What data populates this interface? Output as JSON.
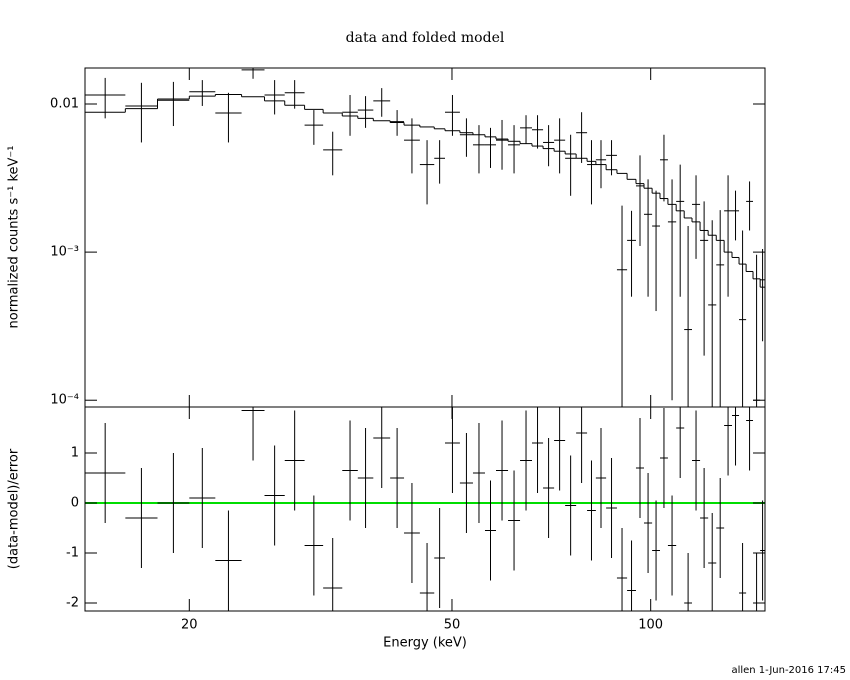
{
  "chart_data": [
    {
      "type": "errorbar",
      "title": "data and folded model",
      "ylabel": "normalized counts s⁻¹ keV⁻¹",
      "xscale": "log",
      "yscale": "log",
      "xlim": [
        13.9,
        149
      ],
      "ylim": [
        9e-05,
        0.0175
      ],
      "yticks": [
        {
          "value": 0.01,
          "label": "0.01"
        },
        {
          "value": 0.001,
          "label": "10⁻³"
        },
        {
          "value": 0.0001,
          "label": "10⁻⁴"
        }
      ],
      "bins": [
        13.9,
        16.0,
        17.9,
        20.0,
        21.9,
        24.0,
        26.0,
        27.9,
        29.9,
        31.9,
        34.1,
        36.0,
        38.0,
        40.3,
        42.3,
        44.7,
        47.0,
        48.8,
        51.4,
        53.8,
        56.1,
        58.3,
        60.8,
        63.4,
        66.1,
        68.7,
        71.4,
        74.2,
        77.1,
        80.1,
        82.6,
        85.6,
        88.9,
        92.1,
        95.0,
        97.7,
        100.5,
        103.3,
        106.2,
        109.3,
        112.4,
        115.5,
        118.8,
        122.2,
        125.7,
        129.2,
        132.8,
        136.1,
        139.5,
        142.9,
        146.5,
        149.0
      ],
      "data": {
        "color": "#000000",
        "values": [
          0.0115,
          0.0097,
          0.0106,
          0.0121,
          0.0087,
          0.017,
          0.0115,
          0.0119,
          0.0072,
          0.0049,
          0.0088,
          0.0091,
          0.0105,
          0.0076,
          0.0057,
          0.0039,
          0.0043,
          0.0088,
          0.0062,
          0.0053,
          0.0053,
          0.0057,
          0.0053,
          0.0069,
          0.0067,
          0.0055,
          0.0057,
          0.0043,
          0.0064,
          0.0039,
          0.0042,
          0.0045,
          0.00076,
          0.0012,
          0.0028,
          0.0018,
          0.0015,
          0.0042,
          0.0016,
          0.0022,
          0.0003,
          0.0021,
          0.0012,
          0.00044,
          0.00082,
          0.0019,
          0.0019,
          0.00035,
          0.0022,
          0.0001,
          0.00065
        ],
        "errors": [
          0.0035,
          0.0042,
          0.0035,
          0.0024,
          0.0032,
          0.0022,
          0.003,
          0.0026,
          0.0019,
          0.0016,
          0.0027,
          0.0022,
          0.0023,
          0.0015,
          0.0023,
          0.0018,
          0.0014,
          0.0027,
          0.0018,
          0.0019,
          0.0016,
          0.0021,
          0.0019,
          0.0015,
          0.0017,
          0.0017,
          0.0023,
          0.0019,
          0.0024,
          0.0018,
          0.0015,
          0.0012,
          0.0013,
          0.0007,
          0.0017,
          0.0013,
          0.0011,
          0.002,
          0.0015,
          0.0017,
          0.0012,
          0.0012,
          0.001,
          0.0012,
          0.0011,
          0.0014,
          0.0007,
          0.00105,
          0.0008,
          0.00086,
          0.0004
        ]
      },
      "model": {
        "color": "#000000",
        "values": [
          0.0088,
          0.0093,
          0.0108,
          0.0113,
          0.0116,
          0.0112,
          0.0105,
          0.0098,
          0.0092,
          0.0087,
          0.0083,
          0.008,
          0.0077,
          0.0075,
          0.0072,
          0.007,
          0.0068,
          0.0066,
          0.0064,
          0.0062,
          0.006,
          0.0058,
          0.0056,
          0.0054,
          0.0052,
          0.005,
          0.0048,
          0.0046,
          0.0043,
          0.0041,
          0.0039,
          0.0036,
          0.0034,
          0.0031,
          0.0029,
          0.0027,
          0.0025,
          0.0023,
          0.0021,
          0.0019,
          0.0017,
          0.0016,
          0.0014,
          0.0013,
          0.0012,
          0.001,
          0.00092,
          0.00083,
          0.00074,
          0.00066,
          0.00058
        ]
      }
    },
    {
      "type": "residual",
      "xlabel": "Energy (keV)",
      "ylabel": "(data-model)/error",
      "xscale": "log",
      "xlim": [
        13.9,
        149
      ],
      "ylim": [
        -2.16,
        1.92
      ],
      "xticks": [
        20,
        50,
        100
      ],
      "yticks": [
        -2,
        -1,
        0,
        1
      ],
      "reference_line": {
        "value": 0,
        "color": "#00dd00"
      },
      "data": {
        "color": "#000000",
        "values": [
          0.6,
          -0.3,
          0.0,
          0.1,
          -1.15,
          1.85,
          0.15,
          0.85,
          -0.85,
          -1.7,
          0.65,
          0.5,
          1.3,
          0.5,
          -0.6,
          -1.8,
          -1.1,
          1.2,
          0.4,
          0.6,
          -0.55,
          0.65,
          -0.35,
          0.85,
          1.2,
          0.3,
          1.25,
          -0.05,
          1.4,
          -0.15,
          0.5,
          -0.1,
          -1.5,
          -1.75,
          0.7,
          -0.4,
          -0.95,
          0.9,
          -0.85,
          1.5,
          -2.0,
          0.85,
          -0.3,
          -1.2,
          -0.5,
          1.55,
          1.75,
          -1.8,
          1.65,
          -2.0,
          -0.95
        ],
        "errors": [
          1,
          1,
          1,
          1,
          1,
          1,
          1,
          1,
          1,
          1,
          1,
          1,
          1,
          1,
          1,
          1,
          1,
          1,
          1,
          1,
          1,
          1,
          1,
          1,
          1,
          1,
          1,
          1,
          1,
          1,
          1,
          1,
          1,
          1,
          1,
          1,
          1,
          1,
          1,
          1,
          1,
          1,
          1,
          1,
          1,
          1,
          1,
          1,
          1,
          1,
          1
        ]
      }
    }
  ],
  "footer": "allen  1-Jun-2016 17:45"
}
